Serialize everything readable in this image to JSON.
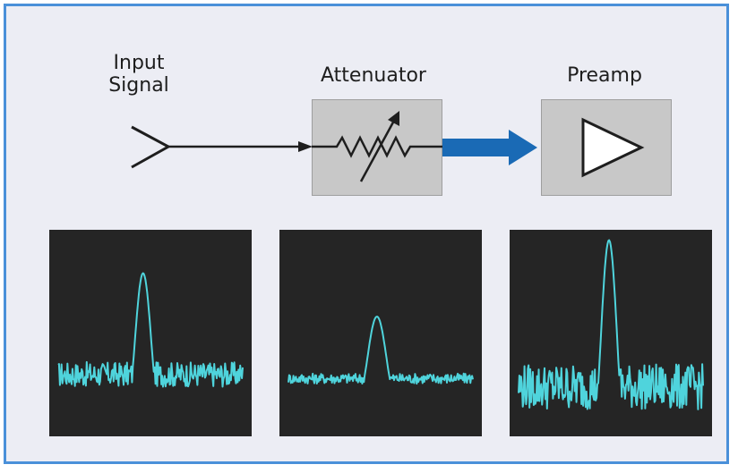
{
  "labels": {
    "input_line1": "Input",
    "input_line2": "Signal",
    "attenuator": "Attenuator",
    "preamp": "Preamp"
  },
  "colors": {
    "frame_border": "#4a90d9",
    "background": "#ecedf4",
    "block_fill": "#c8c8c8",
    "arrow_blue": "#1a6ab5",
    "panel_bg": "#252525",
    "trace": "#4fd4dc"
  },
  "icons": [
    "antenna-icon",
    "variable-resistor-icon",
    "amplifier-triangle-icon"
  ],
  "traces": [
    {
      "noise_level": 0.3,
      "noise_amplitude": 0.06,
      "peak_level": 0.79,
      "peak_center": 0.46,
      "peak_halfwidth": 0.06
    },
    {
      "noise_level": 0.28,
      "noise_amplitude": 0.025,
      "peak_level": 0.58,
      "peak_center": 0.48,
      "peak_halfwidth": 0.07
    },
    {
      "noise_level": 0.24,
      "noise_amplitude": 0.11,
      "peak_level": 0.95,
      "peak_center": 0.49,
      "peak_halfwidth": 0.06
    }
  ]
}
